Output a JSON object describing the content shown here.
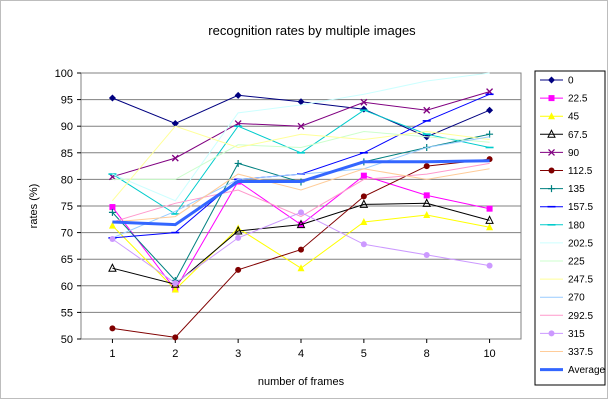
{
  "chart_data": {
    "type": "line",
    "title": "recognition rates by multiple images",
    "xlabel": "number of frames",
    "ylabel": "rates (%)",
    "categories": [
      "1",
      "2",
      "3",
      "4",
      "5",
      "8",
      "10"
    ],
    "ylim": [
      50,
      100
    ],
    "yticks": [
      "50",
      "55",
      "60",
      "65",
      "70",
      "75",
      "80",
      "85",
      "90",
      "95",
      "100"
    ],
    "grid": "horizontal",
    "legend_position": "right",
    "series": [
      {
        "name": "0",
        "color": "#000080",
        "marker": "diamond",
        "values": [
          95.3,
          90.5,
          95.8,
          94.6,
          93.2,
          88,
          93
        ]
      },
      {
        "name": "22.5",
        "color": "#ff00ff",
        "marker": "square",
        "values": [
          74.8,
          59.3,
          79.6,
          71.5,
          80.7,
          77,
          74.5
        ]
      },
      {
        "name": "45",
        "color": "#ffff00",
        "marker": "triangle",
        "values": [
          71.3,
          59.3,
          70.8,
          63.3,
          72,
          73.3,
          71
        ]
      },
      {
        "name": "67.5",
        "color": "#000000",
        "marker": "triangle-open",
        "values": [
          63.3,
          60.3,
          70.3,
          71.5,
          75.3,
          75.5,
          72.3
        ]
      },
      {
        "name": "90",
        "color": "#800080",
        "marker": "x",
        "values": [
          80.5,
          84,
          90.5,
          90,
          94.5,
          93,
          96.5
        ]
      },
      {
        "name": "112.5",
        "color": "#800000",
        "marker": "circle",
        "values": [
          52,
          50.3,
          63,
          66.8,
          76.8,
          82.5,
          83.8
        ]
      },
      {
        "name": "135",
        "color": "#008080",
        "marker": "plus",
        "values": [
          73.8,
          61,
          83,
          79.5,
          83.3,
          86,
          88.5
        ]
      },
      {
        "name": "157.5",
        "color": "#0000ff",
        "marker": "dash",
        "values": [
          69,
          70,
          80,
          81,
          85,
          91,
          96
        ]
      },
      {
        "name": "180",
        "color": "#00cccc",
        "marker": "dash",
        "values": [
          81,
          73.5,
          90,
          85,
          93,
          88.5,
          86
        ]
      },
      {
        "name": "202.5",
        "color": "#ccffff",
        "marker": "none",
        "values": [
          81,
          76,
          92.5,
          94,
          96,
          98.5,
          100
        ]
      },
      {
        "name": "225",
        "color": "#ccffcc",
        "marker": "none",
        "values": [
          80,
          80,
          86.5,
          86,
          89,
          88,
          87
        ]
      },
      {
        "name": "247.5",
        "color": "#ffff99",
        "marker": "none",
        "values": [
          76,
          90,
          86,
          88.5,
          87.5,
          89,
          87.5
        ]
      },
      {
        "name": "270",
        "color": "#99ccff",
        "marker": "none",
        "values": [
          69,
          74,
          80,
          81,
          82,
          86,
          88
        ]
      },
      {
        "name": "292.5",
        "color": "#ff99cc",
        "marker": "none",
        "values": [
          72,
          75.5,
          78,
          73,
          80,
          81,
          83
        ]
      },
      {
        "name": "315",
        "color": "#cc99ff",
        "marker": "circle",
        "values": [
          68.8,
          60.5,
          69,
          73.8,
          67.8,
          65.8,
          63.8
        ]
      },
      {
        "name": "337.5",
        "color": "#ffcc99",
        "marker": "none",
        "values": [
          72,
          73,
          81,
          78,
          82,
          80,
          82
        ]
      },
      {
        "name": "Average",
        "color": "#3366ff",
        "marker": "none",
        "width": 3,
        "values": [
          72,
          71.5,
          79.6,
          79.6,
          83.3,
          83.3,
          83.5
        ]
      }
    ]
  }
}
